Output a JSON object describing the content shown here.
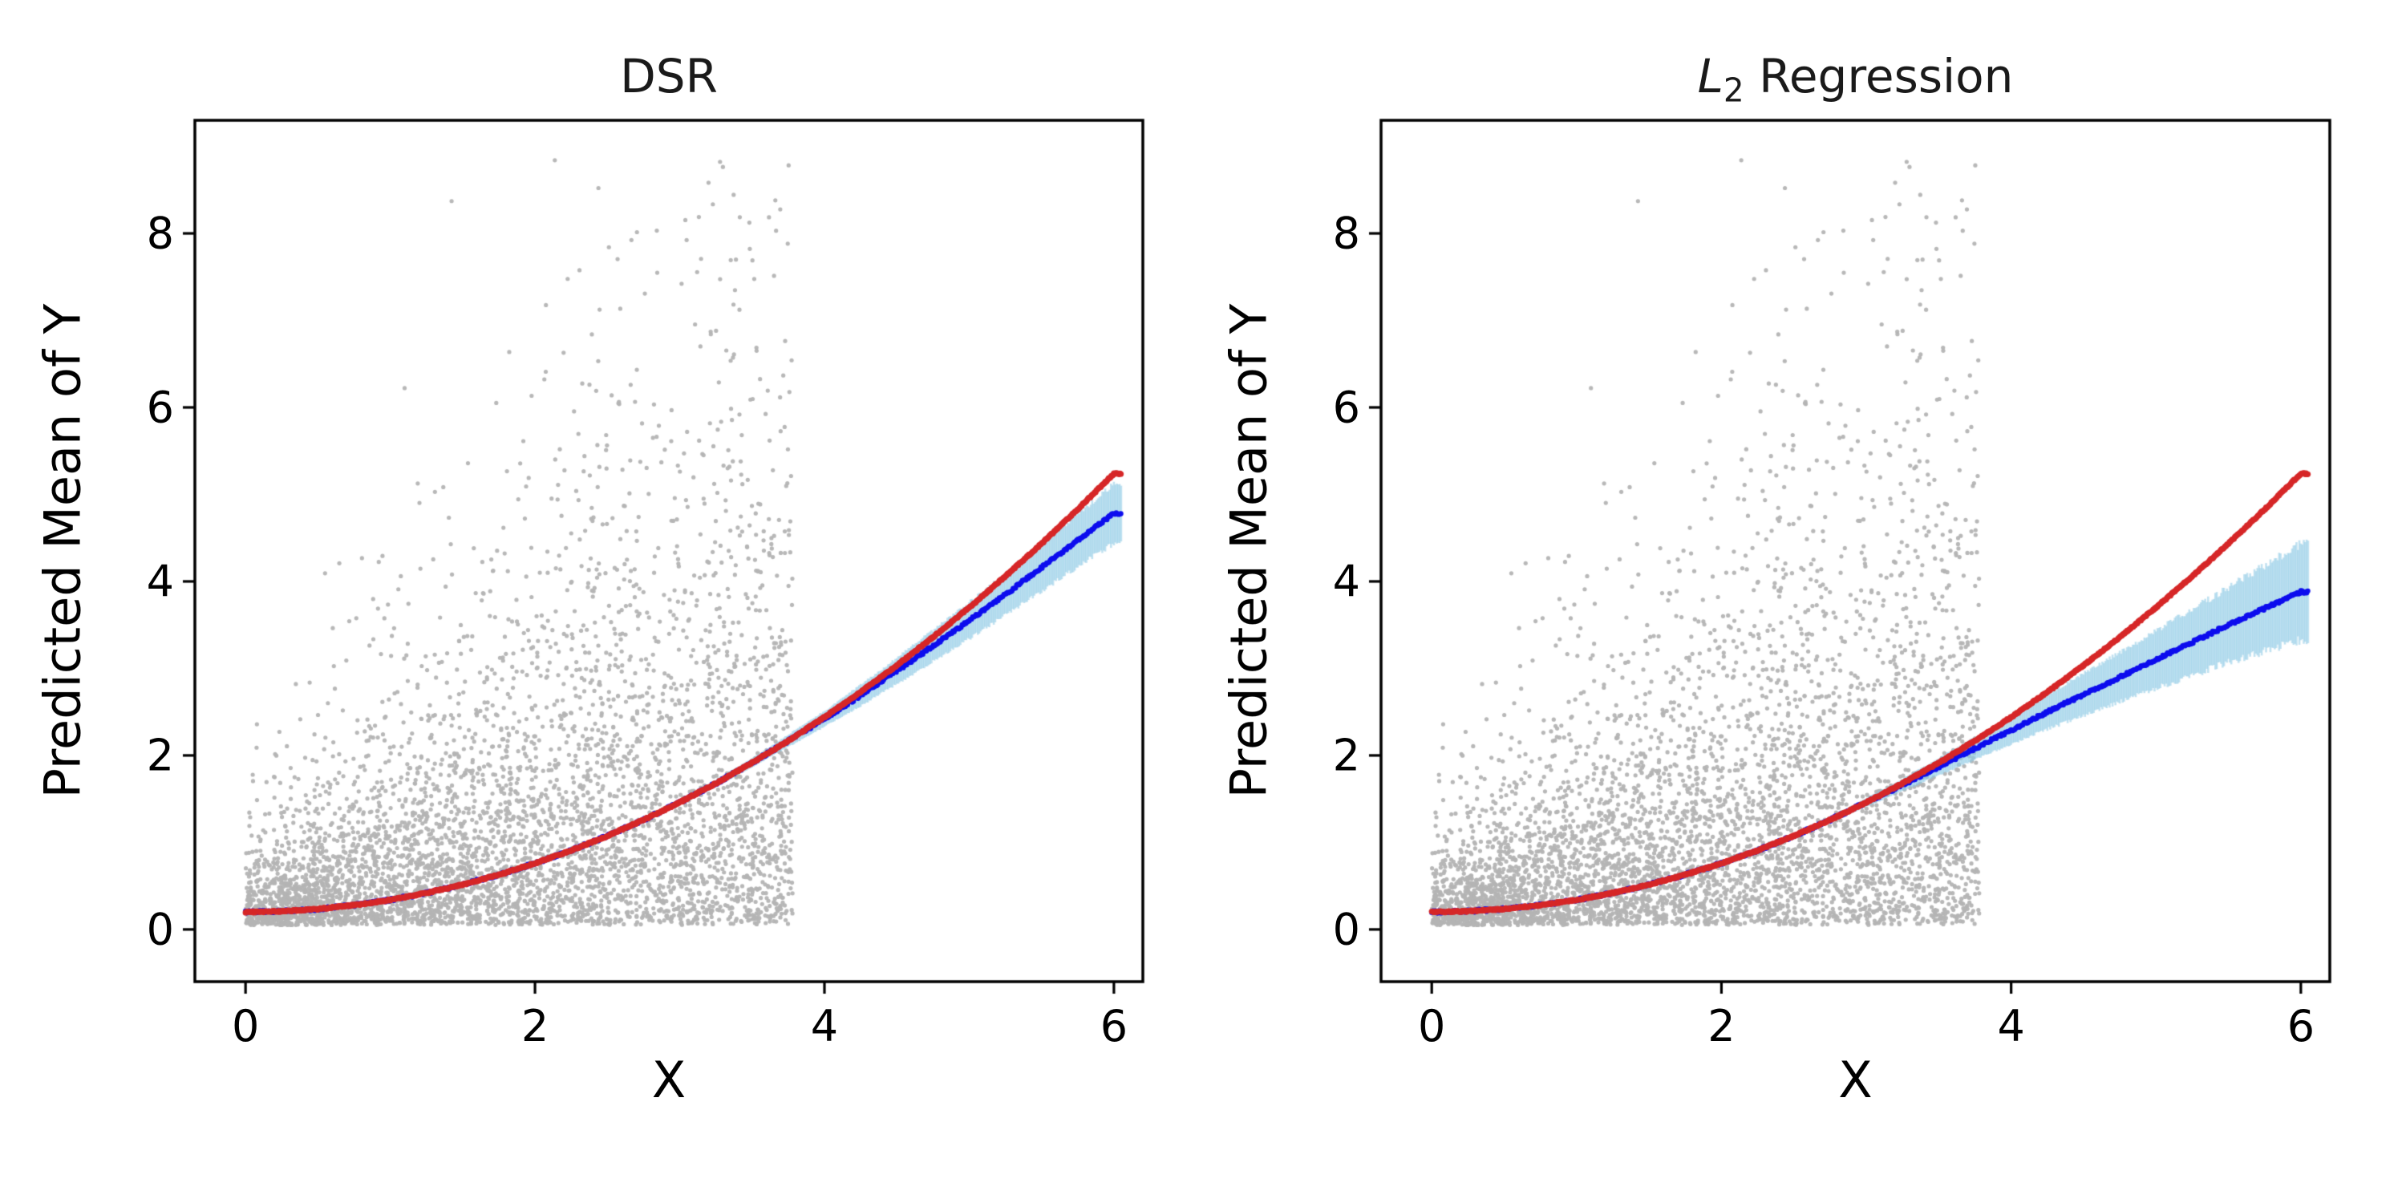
{
  "figure": {
    "background": "#ffffff"
  },
  "colors": {
    "scatter": "#b4b4b4",
    "true_line": "#d62728",
    "pred_line": "#0d0dee",
    "band": "#8ecae6",
    "axis": "#000000",
    "text": "#1a1a1a"
  },
  "scatter_cloud": {
    "seed": 1234,
    "n": 5000,
    "x_min": 0.0,
    "x_max": 3.78,
    "y_offset": 0.05,
    "noise_scale_intercept": 0.3,
    "noise_scale_slope": 0.5,
    "y_clip": 8.85,
    "note": "gray observation cloud, identical in both panels; y ~ offset + Exponential(scale = a + b*x)"
  },
  "chart_data": [
    {
      "type": "scatter+line",
      "title_text": "DSR",
      "title_parts": [
        {
          "t": "DSR",
          "style": "normal"
        }
      ],
      "xlabel": "X",
      "ylabel": "Predicted Mean of Y",
      "xlim": [
        -0.35,
        6.2
      ],
      "ylim": [
        -0.6,
        9.3
      ],
      "xticks": [
        0,
        2,
        4,
        6
      ],
      "yticks": [
        0,
        2,
        4,
        6,
        8
      ],
      "grid": false,
      "legend": "none",
      "x": [
        0,
        0.25,
        0.5,
        0.75,
        1,
        1.25,
        1.5,
        1.75,
        2,
        2.25,
        2.5,
        2.75,
        3,
        3.25,
        3.5,
        3.75,
        4,
        4.25,
        4.5,
        4.75,
        5,
        5.25,
        5.5,
        5.75,
        6
      ],
      "series": [
        {
          "name": "observations",
          "type": "scatter",
          "color_key": "scatter",
          "source": "scatter_cloud"
        },
        {
          "name": "true-mean",
          "type": "line",
          "color_key": "true_line",
          "y": [
            0.2,
            0.209,
            0.235,
            0.279,
            0.34,
            0.419,
            0.515,
            0.629,
            0.76,
            0.909,
            1.075,
            1.259,
            1.46,
            1.679,
            1.915,
            2.169,
            2.44,
            2.729,
            3.035,
            3.359,
            3.7,
            4.059,
            4.435,
            4.829,
            5.24
          ]
        },
        {
          "name": "predicted-mean",
          "type": "line",
          "color_key": "pred_line",
          "y": [
            0.2,
            0.209,
            0.235,
            0.279,
            0.34,
            0.419,
            0.515,
            0.629,
            0.76,
            0.909,
            1.075,
            1.259,
            1.46,
            1.679,
            1.915,
            2.169,
            2.42,
            2.69,
            2.97,
            3.26,
            3.55,
            3.85,
            4.16,
            4.47,
            4.78
          ]
        },
        {
          "name": "confidence-band",
          "type": "band",
          "color_key": "band",
          "halfwidth": [
            0.03,
            0.03,
            0.03,
            0.03,
            0.03,
            0.03,
            0.03,
            0.03,
            0.03,
            0.03,
            0.03,
            0.03,
            0.03,
            0.04,
            0.05,
            0.07,
            0.09,
            0.12,
            0.15,
            0.18,
            0.21,
            0.24,
            0.27,
            0.3,
            0.34
          ]
        }
      ]
    },
    {
      "type": "scatter+line",
      "title_text": "L2 Regression",
      "title_parts": [
        {
          "t": "L",
          "style": "italic"
        },
        {
          "t": "2",
          "style": "sub"
        },
        {
          "t": " Regression",
          "style": "normal"
        }
      ],
      "xlabel": "X",
      "ylabel": "Predicted Mean of Y",
      "xlim": [
        -0.35,
        6.2
      ],
      "ylim": [
        -0.6,
        9.3
      ],
      "xticks": [
        0,
        2,
        4,
        6
      ],
      "yticks": [
        0,
        2,
        4,
        6,
        8
      ],
      "grid": false,
      "legend": "none",
      "x": [
        0,
        0.25,
        0.5,
        0.75,
        1,
        1.25,
        1.5,
        1.75,
        2,
        2.25,
        2.5,
        2.75,
        3,
        3.25,
        3.5,
        3.75,
        4,
        4.25,
        4.5,
        4.75,
        5,
        5.25,
        5.5,
        5.75,
        6
      ],
      "series": [
        {
          "name": "observations",
          "type": "scatter",
          "color_key": "scatter",
          "source": "scatter_cloud"
        },
        {
          "name": "true-mean",
          "type": "line",
          "color_key": "true_line",
          "y": [
            0.2,
            0.209,
            0.235,
            0.279,
            0.34,
            0.419,
            0.515,
            0.629,
            0.76,
            0.909,
            1.075,
            1.259,
            1.46,
            1.679,
            1.915,
            2.169,
            2.44,
            2.729,
            3.035,
            3.359,
            3.7,
            4.059,
            4.435,
            4.829,
            5.24
          ]
        },
        {
          "name": "predicted-mean",
          "type": "line",
          "color_key": "pred_line",
          "y": [
            0.2,
            0.209,
            0.235,
            0.279,
            0.34,
            0.419,
            0.515,
            0.629,
            0.76,
            0.909,
            1.075,
            1.259,
            1.46,
            1.66,
            1.87,
            2.08,
            2.29,
            2.5,
            2.7,
            2.9,
            3.1,
            3.3,
            3.5,
            3.69,
            3.88
          ]
        },
        {
          "name": "confidence-band",
          "type": "band",
          "color_key": "band",
          "halfwidth": [
            0.03,
            0.03,
            0.03,
            0.03,
            0.03,
            0.03,
            0.03,
            0.03,
            0.03,
            0.03,
            0.03,
            0.03,
            0.05,
            0.07,
            0.1,
            0.13,
            0.16,
            0.2,
            0.24,
            0.28,
            0.33,
            0.38,
            0.43,
            0.49,
            0.55
          ]
        }
      ]
    }
  ]
}
